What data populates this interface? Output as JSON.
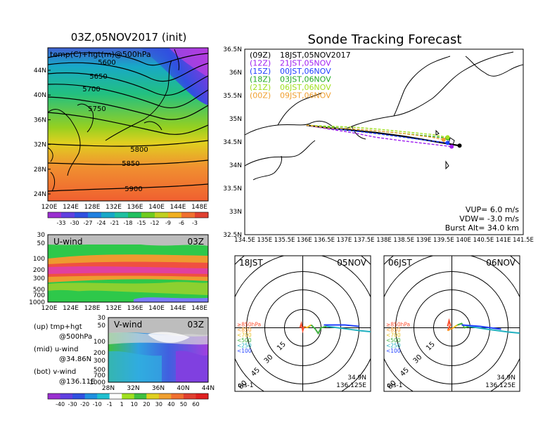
{
  "left_map": {
    "title": "03Z,05NOV2017 (init)",
    "subtitle": "temp(C)+hgt(m)@500hPa",
    "lat_ticks": [
      "44N",
      "40N",
      "36N",
      "32N",
      "28N",
      "24N"
    ],
    "lon_ticks": [
      "120E",
      "124E",
      "128E",
      "132E",
      "136E",
      "140E",
      "144E",
      "148E"
    ],
    "contour_labels": [
      "5600",
      "5650",
      "5700",
      "5750",
      "5800",
      "5850",
      "5900"
    ],
    "colorbar_labels": [
      "-33",
      "-30",
      "-27",
      "-24",
      "-21",
      "-18",
      "-15",
      "-12",
      "-9",
      "-6",
      "-3"
    ]
  },
  "uwind_panel": {
    "title": "U-wind",
    "time": "03Z",
    "p_ticks": [
      "30",
      "50",
      "100",
      "200",
      "300",
      "500",
      "700",
      "1000"
    ],
    "lon_ticks": [
      "120E",
      "124E",
      "128E",
      "132E",
      "136E",
      "140E",
      "144E",
      "148E"
    ]
  },
  "vwind_panel": {
    "title": "V-wind",
    "time": "03Z",
    "p_ticks": [
      "30",
      "50",
      "100",
      "200",
      "300",
      "500",
      "700",
      "1000"
    ],
    "lat_ticks": [
      "28N",
      "32N",
      "36N",
      "40N",
      "44N"
    ]
  },
  "notes": {
    "up_line1": "(up) tmp+hgt",
    "up_line2": "@500hPa",
    "mid_line1": "(mid) u-wind",
    "mid_line2": "@34.86N",
    "bot_line1": "(bot) v-wind",
    "bot_line2": "@136.11E"
  },
  "wind_colorbar_labels": [
    "-40",
    "-30",
    "-20",
    "-10",
    "-1",
    "1",
    "10",
    "20",
    "30",
    "40",
    "50",
    "60"
  ],
  "track": {
    "title": "Sonde Tracking Forecast",
    "legend": [
      {
        "tag": "(09Z)",
        "text": "18JST,05NOV2017",
        "color": "#000000"
      },
      {
        "tag": "(12Z)",
        "text": "21JST,05NOV",
        "color": "#a020f0"
      },
      {
        "tag": "(15Z)",
        "text": "00JST,06NOV",
        "color": "#1f3fff"
      },
      {
        "tag": "(18Z)",
        "text": "03JST,06NOV",
        "color": "#22aa22"
      },
      {
        "tag": "(21Z)",
        "text": "06JST,06NOV",
        "color": "#a0e020"
      },
      {
        "tag": "(00Z)",
        "text": "09JST,06NOV",
        "color": "#f0a030"
      }
    ],
    "lat_ticks": [
      "36.5N",
      "36N",
      "35.5N",
      "35N",
      "34.5N",
      "34N",
      "33.5N",
      "33N",
      "32.5N"
    ],
    "lon_ticks": [
      "134.5E",
      "135E",
      "135.5E",
      "136E",
      "136.5E",
      "137E",
      "137.5E",
      "138E",
      "138.5E",
      "139E",
      "139.5E",
      "140E",
      "140.5E",
      "141E",
      "141.5E"
    ],
    "params": {
      "vup": "VUP= 6.0 m/s",
      "vdw": "VDW= -3.0 m/s",
      "burst": "Burst Alt= 34.0 km"
    }
  },
  "polar_left": {
    "time": "18JST",
    "date": "05NOV",
    "ring_labels": [
      "15",
      "30",
      "45",
      "60"
    ],
    "levels": [
      {
        "text": "≥850hPa",
        "color": "#ff5030"
      },
      {
        "text": "<850",
        "color": "#ff9a20"
      },
      {
        "text": "<700",
        "color": "#e8c020"
      },
      {
        "text": "<500",
        "color": "#40b040"
      },
      {
        "text": "<250",
        "color": "#20b0c0"
      },
      {
        "text": "<100",
        "color": "#2040ff"
      }
    ],
    "unit": "ms-1",
    "lat": "34.9N",
    "lon": "136.125E"
  },
  "polar_right": {
    "time": "06JST",
    "date": "06NOV",
    "ring_labels": [
      "15",
      "30",
      "45",
      "60"
    ],
    "levels": [
      {
        "text": "≥850hPa",
        "color": "#ff5030"
      },
      {
        "text": "<850",
        "color": "#ff9a20"
      },
      {
        "text": "<700",
        "color": "#e8c020"
      },
      {
        "text": "<500",
        "color": "#40b040"
      },
      {
        "text": "<250",
        "color": "#20b0c0"
      },
      {
        "text": "<100",
        "color": "#2040ff"
      }
    ],
    "unit": "ms-1",
    "lat": "34.9N",
    "lon": "136.125E"
  },
  "chart_data": [
    {
      "type": "line",
      "title": "Sonde Tracking Forecast",
      "xlim": [
        134.5,
        141.5
      ],
      "ylim": [
        32.5,
        36.5
      ],
      "series": [
        {
          "name": "18JST,05NOV2017",
          "x": [
            136.05,
            136.6,
            137.2,
            137.8,
            138.5,
            139.2,
            139.9
          ],
          "y": [
            34.86,
            34.8,
            34.75,
            34.7,
            34.62,
            34.52,
            34.42
          ]
        },
        {
          "name": "21JST,05NOV",
          "x": [
            136.05,
            136.6,
            137.2,
            137.8,
            138.5,
            139.2,
            139.7
          ],
          "y": [
            34.86,
            34.78,
            34.7,
            34.6,
            34.52,
            34.45,
            34.4
          ]
        },
        {
          "name": "00JST,06NOV",
          "x": [
            136.05,
            136.6,
            137.2,
            137.8,
            138.5,
            139.2,
            139.6
          ],
          "y": [
            34.86,
            34.8,
            34.74,
            34.68,
            34.6,
            34.52,
            34.48
          ]
        },
        {
          "name": "03JST,06NOV",
          "x": [
            136.05,
            136.6,
            137.2,
            137.8,
            138.5,
            139.2,
            139.6
          ],
          "y": [
            34.86,
            34.82,
            34.78,
            34.74,
            34.68,
            34.62,
            34.58
          ]
        },
        {
          "name": "06JST,06NOV",
          "x": [
            136.05,
            136.6,
            137.2,
            137.8,
            138.5,
            139.2,
            139.6
          ],
          "y": [
            34.86,
            34.84,
            34.82,
            34.78,
            34.72,
            34.66,
            34.6
          ]
        },
        {
          "name": "09JST,06NOV",
          "x": [
            136.05,
            136.6,
            137.2,
            137.8,
            138.5,
            139.2,
            139.5
          ],
          "y": [
            34.86,
            34.8,
            34.78,
            34.74,
            34.68,
            34.6,
            34.55
          ]
        }
      ]
    }
  ]
}
